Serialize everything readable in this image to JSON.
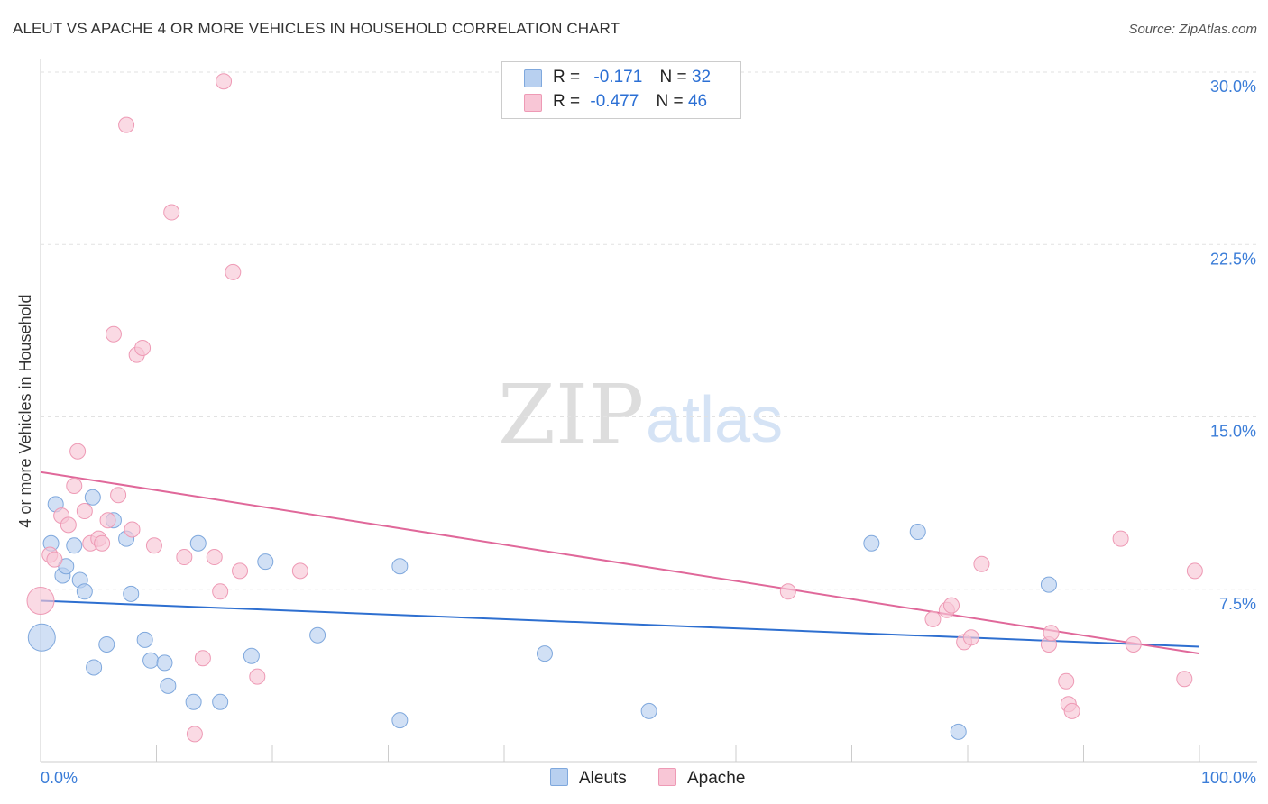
{
  "title": "ALEUT VS APACHE 4 OR MORE VEHICLES IN HOUSEHOLD CORRELATION CHART",
  "source": "Source: ZipAtlas.com",
  "colors": {
    "aleut_fill": "#b8d0f0",
    "aleut_stroke": "#7fa8dd",
    "aleut_line": "#2e6fd0",
    "apache_fill": "#f8c6d6",
    "apache_stroke": "#ee9ab5",
    "apache_line": "#e0689a",
    "tick_label": "#3b7dd8"
  },
  "legend": {
    "aleut": {
      "r_label": "R =",
      "r_value": "-0.171",
      "n_label": "N =",
      "n_value": "32"
    },
    "apache": {
      "r_label": "R =",
      "r_value": "-0.477",
      "n_label": "N =",
      "n_value": "46"
    }
  },
  "bottom_legend": {
    "aleut": "Aleuts",
    "apache": "Apache"
  },
  "watermark": {
    "zip": "ZIP",
    "atlas": "atlas"
  },
  "chart_data": {
    "type": "scatter",
    "title": "ALEUT VS APACHE 4 OR MORE VEHICLES IN HOUSEHOLD CORRELATION CHART",
    "xlabel": "",
    "ylabel": "4 or more Vehicles in Household",
    "xlim": [
      0,
      100
    ],
    "ylim": [
      0,
      30
    ],
    "x_tick_labels": [
      "0.0%",
      "100.0%"
    ],
    "y_ticks": [
      7.5,
      15.0,
      22.5,
      30.0
    ],
    "y_tick_labels": [
      "7.5%",
      "15.0%",
      "22.5%",
      "30.0%"
    ],
    "grid": "horizontal dashed",
    "legend_position": "top-center",
    "series": [
      {
        "name": "Aleuts",
        "r": -0.171,
        "n": 32,
        "trend": {
          "x": [
            0,
            100
          ],
          "y": [
            7.0,
            5.0
          ]
        },
        "points": [
          {
            "x": 0.1,
            "y": 5.4,
            "big": true
          },
          {
            "x": 0.9,
            "y": 9.5
          },
          {
            "x": 1.3,
            "y": 11.2
          },
          {
            "x": 1.9,
            "y": 8.1
          },
          {
            "x": 2.2,
            "y": 8.5
          },
          {
            "x": 2.9,
            "y": 9.4
          },
          {
            "x": 3.4,
            "y": 7.9
          },
          {
            "x": 3.8,
            "y": 7.4
          },
          {
            "x": 4.5,
            "y": 11.5
          },
          {
            "x": 4.6,
            "y": 4.1
          },
          {
            "x": 5.7,
            "y": 5.1
          },
          {
            "x": 6.3,
            "y": 10.5
          },
          {
            "x": 7.4,
            "y": 9.7
          },
          {
            "x": 7.8,
            "y": 7.3
          },
          {
            "x": 9.0,
            "y": 5.3
          },
          {
            "x": 9.5,
            "y": 4.4
          },
          {
            "x": 10.7,
            "y": 4.3
          },
          {
            "x": 11.0,
            "y": 3.3
          },
          {
            "x": 13.2,
            "y": 2.6
          },
          {
            "x": 13.6,
            "y": 9.5
          },
          {
            "x": 15.5,
            "y": 2.6
          },
          {
            "x": 18.2,
            "y": 4.6
          },
          {
            "x": 19.4,
            "y": 8.7
          },
          {
            "x": 23.9,
            "y": 5.5
          },
          {
            "x": 31.0,
            "y": 8.5
          },
          {
            "x": 31.0,
            "y": 1.8
          },
          {
            "x": 43.5,
            "y": 4.7
          },
          {
            "x": 52.5,
            "y": 2.2
          },
          {
            "x": 71.7,
            "y": 9.5
          },
          {
            "x": 75.7,
            "y": 10.0
          },
          {
            "x": 79.2,
            "y": 1.3
          },
          {
            "x": 87.0,
            "y": 7.7
          }
        ]
      },
      {
        "name": "Apache",
        "r": -0.477,
        "n": 46,
        "trend": {
          "x": [
            0,
            100
          ],
          "y": [
            12.6,
            4.7
          ]
        },
        "points": [
          {
            "x": 0.0,
            "y": 7.0,
            "big": true
          },
          {
            "x": 0.8,
            "y": 9.0
          },
          {
            "x": 1.2,
            "y": 8.8
          },
          {
            "x": 1.8,
            "y": 10.7
          },
          {
            "x": 2.4,
            "y": 10.3
          },
          {
            "x": 2.9,
            "y": 12.0
          },
          {
            "x": 3.2,
            "y": 13.5
          },
          {
            "x": 3.8,
            "y": 10.9
          },
          {
            "x": 4.3,
            "y": 9.5
          },
          {
            "x": 5.0,
            "y": 9.7
          },
          {
            "x": 5.3,
            "y": 9.5
          },
          {
            "x": 5.8,
            "y": 10.5
          },
          {
            "x": 6.3,
            "y": 18.6
          },
          {
            "x": 6.7,
            "y": 11.6
          },
          {
            "x": 7.4,
            "y": 27.7
          },
          {
            "x": 7.9,
            "y": 10.1
          },
          {
            "x": 8.3,
            "y": 17.7
          },
          {
            "x": 8.8,
            "y": 18.0
          },
          {
            "x": 9.8,
            "y": 9.4
          },
          {
            "x": 11.3,
            "y": 23.9
          },
          {
            "x": 12.4,
            "y": 8.9
          },
          {
            "x": 13.3,
            "y": 1.2
          },
          {
            "x": 14.0,
            "y": 4.5
          },
          {
            "x": 15.0,
            "y": 8.9
          },
          {
            "x": 15.5,
            "y": 7.4
          },
          {
            "x": 15.8,
            "y": 29.6
          },
          {
            "x": 16.6,
            "y": 21.3
          },
          {
            "x": 17.2,
            "y": 8.3
          },
          {
            "x": 18.7,
            "y": 3.7
          },
          {
            "x": 22.4,
            "y": 8.3
          },
          {
            "x": 64.5,
            "y": 7.4
          },
          {
            "x": 77.0,
            "y": 6.2
          },
          {
            "x": 78.2,
            "y": 6.6
          },
          {
            "x": 78.6,
            "y": 6.8
          },
          {
            "x": 79.7,
            "y": 5.2
          },
          {
            "x": 80.3,
            "y": 5.4
          },
          {
            "x": 81.2,
            "y": 8.6
          },
          {
            "x": 87.0,
            "y": 5.1
          },
          {
            "x": 87.2,
            "y": 5.6
          },
          {
            "x": 88.5,
            "y": 3.5
          },
          {
            "x": 88.7,
            "y": 2.5
          },
          {
            "x": 89.0,
            "y": 2.2
          },
          {
            "x": 93.2,
            "y": 9.7
          },
          {
            "x": 94.3,
            "y": 5.1
          },
          {
            "x": 98.7,
            "y": 3.6
          },
          {
            "x": 99.6,
            "y": 8.3
          }
        ]
      }
    ]
  }
}
